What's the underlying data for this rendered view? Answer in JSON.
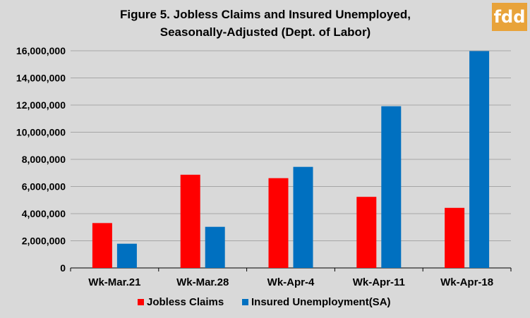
{
  "logo": {
    "text": "fdd",
    "color": "#e8a33a"
  },
  "chart_data": {
    "type": "bar",
    "title": "Figure 5. Jobless Claims and Insured Unemployed,",
    "subtitle": "Seasonally-Adjusted (Dept. of Labor)",
    "categories": [
      "Wk-Mar.21",
      "Wk-Mar.28",
      "Wk-Apr-4",
      "Wk-Apr-11",
      "Wk-Apr-18"
    ],
    "series": [
      {
        "name": "Jobless Claims",
        "color": "#ff0000",
        "values": [
          3307000,
          6867000,
          6615000,
          5237000,
          4427000
        ]
      },
      {
        "name": "Insured Unemployment(SA)",
        "color": "#0070c0",
        "values": [
          1784000,
          3029000,
          7446000,
          11914000,
          15976000
        ]
      }
    ],
    "ylim": [
      0,
      16000000
    ],
    "yticks": [
      0,
      2000000,
      4000000,
      6000000,
      8000000,
      10000000,
      12000000,
      14000000,
      16000000
    ],
    "ytick_labels": [
      "0",
      "2,000,000",
      "4,000,000",
      "6,000,000",
      "8,000,000",
      "10,000,000",
      "12,000,000",
      "14,000,000",
      "16,000,000"
    ],
    "grid": true,
    "legend_position": "bottom"
  }
}
